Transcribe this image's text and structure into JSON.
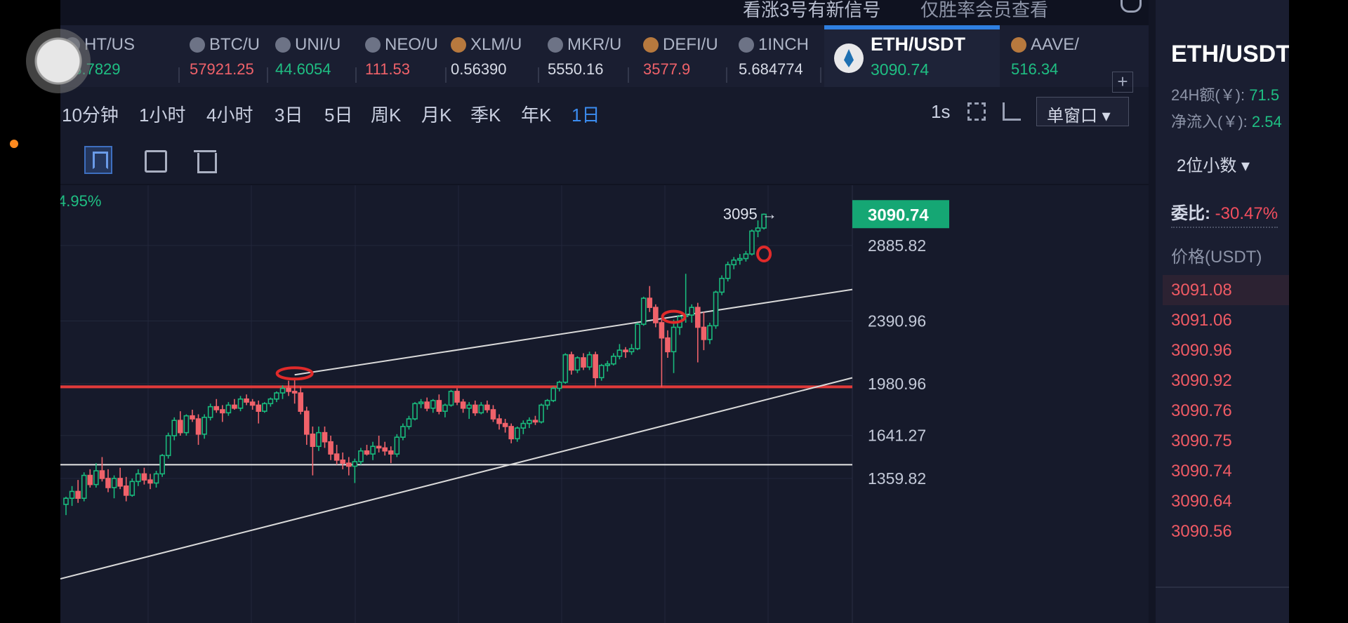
{
  "top_notices": [
    "看涨3号有新信号",
    "仅胜率会员查看"
  ],
  "ticker_tabs": [
    {
      "symbol": "HT/US",
      "price": "28.7829",
      "dir": "up"
    },
    {
      "symbol": "BTC/U",
      "price": "57921.25",
      "dir": "down"
    },
    {
      "symbol": "UNI/U",
      "price": "44.6054",
      "dir": "up"
    },
    {
      "symbol": "NEO/U",
      "price": "111.53",
      "dir": "down"
    },
    {
      "symbol": "XLM/U",
      "price": "0.56390",
      "dir": "flat"
    },
    {
      "symbol": "MKR/U",
      "price": "5550.16",
      "dir": "flat"
    },
    {
      "symbol": "DEFI/U",
      "price": "3577.9",
      "dir": "down"
    },
    {
      "symbol": "1INCH",
      "price": "5.684774",
      "dir": "flat"
    },
    {
      "symbol": "ETH/USDT",
      "price": "3090.74",
      "dir": "up",
      "active": true
    },
    {
      "symbol": "AAVE/",
      "price": "516.34",
      "dir": "up"
    }
  ],
  "add_tab_label": "+",
  "timeframes": [
    {
      "label": "10分钟"
    },
    {
      "label": "1小时"
    },
    {
      "label": "4小时"
    },
    {
      "label": "3日"
    },
    {
      "label": "5日"
    },
    {
      "label": "周K"
    },
    {
      "label": "月K"
    },
    {
      "label": "季K"
    },
    {
      "label": "年K"
    },
    {
      "label": "1日",
      "active": true
    }
  ],
  "interval": "1s",
  "window_select": "单窗口",
  "side_panel": {
    "title": "ETH/USDT",
    "vol_label": "24H额(￥): ",
    "vol_value": "71.5",
    "inflow_label": "净流入(￥): ",
    "inflow_value": "2.54",
    "digits": "2位小数",
    "ratio_label": "委比: ",
    "ratio_value": "-30.47%",
    "price_header": "价格(USDT)",
    "asks": [
      "3091.08",
      "3091.06",
      "3090.96",
      "3090.92",
      "3090.76",
      "3090.75",
      "3090.74",
      "3090.64",
      "3090.56"
    ]
  },
  "chart_data": {
    "type": "candlestick",
    "pct_label": "4.95%",
    "current_price": "3090.74",
    "high_marker": "3095",
    "y_axis_ticks": [
      "2885.82",
      "2390.96",
      "1980.96",
      "1641.27",
      "1359.82"
    ],
    "y_axis_tick_values": [
      2885.82,
      2390.96,
      1980.96,
      1641.27,
      1359.82
    ],
    "support_level": 1960,
    "white_level": 1450,
    "colors": {
      "up": "#19b97c",
      "down": "#f0626a",
      "support": "#e03a3a",
      "trend": "#d9d9d9"
    },
    "candles": [
      {
        "o": 1190,
        "h": 1240,
        "l": 1120,
        "c": 1230
      },
      {
        "o": 1230,
        "h": 1310,
        "l": 1180,
        "c": 1275
      },
      {
        "o": 1275,
        "h": 1350,
        "l": 1200,
        "c": 1230
      },
      {
        "o": 1230,
        "h": 1400,
        "l": 1210,
        "c": 1380
      },
      {
        "o": 1380,
        "h": 1420,
        "l": 1300,
        "c": 1320
      },
      {
        "o": 1320,
        "h": 1460,
        "l": 1300,
        "c": 1410
      },
      {
        "o": 1410,
        "h": 1500,
        "l": 1340,
        "c": 1360
      },
      {
        "o": 1360,
        "h": 1420,
        "l": 1270,
        "c": 1300
      },
      {
        "o": 1300,
        "h": 1380,
        "l": 1230,
        "c": 1360
      },
      {
        "o": 1360,
        "h": 1430,
        "l": 1290,
        "c": 1310
      },
      {
        "o": 1310,
        "h": 1370,
        "l": 1210,
        "c": 1250
      },
      {
        "o": 1250,
        "h": 1360,
        "l": 1240,
        "c": 1340
      },
      {
        "o": 1340,
        "h": 1420,
        "l": 1310,
        "c": 1390
      },
      {
        "o": 1390,
        "h": 1430,
        "l": 1320,
        "c": 1350
      },
      {
        "o": 1350,
        "h": 1390,
        "l": 1290,
        "c": 1330
      },
      {
        "o": 1330,
        "h": 1410,
        "l": 1300,
        "c": 1390
      },
      {
        "o": 1390,
        "h": 1520,
        "l": 1370,
        "c": 1510
      },
      {
        "o": 1510,
        "h": 1660,
        "l": 1490,
        "c": 1640
      },
      {
        "o": 1640,
        "h": 1760,
        "l": 1610,
        "c": 1740
      },
      {
        "o": 1740,
        "h": 1800,
        "l": 1640,
        "c": 1660
      },
      {
        "o": 1660,
        "h": 1780,
        "l": 1640,
        "c": 1770
      },
      {
        "o": 1770,
        "h": 1810,
        "l": 1730,
        "c": 1750
      },
      {
        "o": 1750,
        "h": 1780,
        "l": 1580,
        "c": 1650
      },
      {
        "o": 1650,
        "h": 1780,
        "l": 1620,
        "c": 1760
      },
      {
        "o": 1760,
        "h": 1850,
        "l": 1740,
        "c": 1830
      },
      {
        "o": 1830,
        "h": 1880,
        "l": 1790,
        "c": 1810
      },
      {
        "o": 1810,
        "h": 1840,
        "l": 1730,
        "c": 1790
      },
      {
        "o": 1790,
        "h": 1860,
        "l": 1770,
        "c": 1840
      },
      {
        "o": 1840,
        "h": 1880,
        "l": 1810,
        "c": 1820
      },
      {
        "o": 1820,
        "h": 1900,
        "l": 1800,
        "c": 1880
      },
      {
        "o": 1880,
        "h": 1910,
        "l": 1840,
        "c": 1860
      },
      {
        "o": 1860,
        "h": 1880,
        "l": 1810,
        "c": 1840
      },
      {
        "o": 1840,
        "h": 1870,
        "l": 1720,
        "c": 1800
      },
      {
        "o": 1800,
        "h": 1860,
        "l": 1790,
        "c": 1850
      },
      {
        "o": 1850,
        "h": 1890,
        "l": 1830,
        "c": 1880
      },
      {
        "o": 1880,
        "h": 1930,
        "l": 1860,
        "c": 1920
      },
      {
        "o": 1920,
        "h": 1970,
        "l": 1880,
        "c": 1950
      },
      {
        "o": 1950,
        "h": 2000,
        "l": 1900,
        "c": 1930
      },
      {
        "o": 1930,
        "h": 2020,
        "l": 1850,
        "c": 1920
      },
      {
        "o": 1920,
        "h": 1960,
        "l": 1780,
        "c": 1800
      },
      {
        "o": 1800,
        "h": 1830,
        "l": 1580,
        "c": 1650
      },
      {
        "o": 1650,
        "h": 1700,
        "l": 1380,
        "c": 1570
      },
      {
        "o": 1570,
        "h": 1700,
        "l": 1540,
        "c": 1660
      },
      {
        "o": 1660,
        "h": 1700,
        "l": 1560,
        "c": 1600
      },
      {
        "o": 1600,
        "h": 1640,
        "l": 1480,
        "c": 1520
      },
      {
        "o": 1520,
        "h": 1580,
        "l": 1450,
        "c": 1480
      },
      {
        "o": 1480,
        "h": 1530,
        "l": 1420,
        "c": 1460
      },
      {
        "o": 1460,
        "h": 1500,
        "l": 1380,
        "c": 1440
      },
      {
        "o": 1440,
        "h": 1490,
        "l": 1330,
        "c": 1470
      },
      {
        "o": 1470,
        "h": 1560,
        "l": 1450,
        "c": 1540
      },
      {
        "o": 1540,
        "h": 1580,
        "l": 1510,
        "c": 1520
      },
      {
        "o": 1520,
        "h": 1600,
        "l": 1480,
        "c": 1570
      },
      {
        "o": 1570,
        "h": 1640,
        "l": 1530,
        "c": 1560
      },
      {
        "o": 1560,
        "h": 1600,
        "l": 1510,
        "c": 1540
      },
      {
        "o": 1540,
        "h": 1570,
        "l": 1460,
        "c": 1520
      },
      {
        "o": 1520,
        "h": 1650,
        "l": 1500,
        "c": 1630
      },
      {
        "o": 1630,
        "h": 1720,
        "l": 1610,
        "c": 1700
      },
      {
        "o": 1700,
        "h": 1770,
        "l": 1680,
        "c": 1750
      },
      {
        "o": 1750,
        "h": 1860,
        "l": 1740,
        "c": 1850
      },
      {
        "o": 1850,
        "h": 1880,
        "l": 1820,
        "c": 1860
      },
      {
        "o": 1860,
        "h": 1890,
        "l": 1800,
        "c": 1820
      },
      {
        "o": 1820,
        "h": 1880,
        "l": 1790,
        "c": 1870
      },
      {
        "o": 1870,
        "h": 1910,
        "l": 1780,
        "c": 1800
      },
      {
        "o": 1800,
        "h": 1850,
        "l": 1760,
        "c": 1840
      },
      {
        "o": 1840,
        "h": 1940,
        "l": 1830,
        "c": 1930
      },
      {
        "o": 1930,
        "h": 1950,
        "l": 1840,
        "c": 1860
      },
      {
        "o": 1860,
        "h": 1880,
        "l": 1790,
        "c": 1820
      },
      {
        "o": 1820,
        "h": 1860,
        "l": 1750,
        "c": 1840
      },
      {
        "o": 1840,
        "h": 1870,
        "l": 1770,
        "c": 1790
      },
      {
        "o": 1790,
        "h": 1860,
        "l": 1780,
        "c": 1840
      },
      {
        "o": 1840,
        "h": 1870,
        "l": 1790,
        "c": 1810
      },
      {
        "o": 1810,
        "h": 1840,
        "l": 1730,
        "c": 1750
      },
      {
        "o": 1750,
        "h": 1780,
        "l": 1680,
        "c": 1720
      },
      {
        "o": 1720,
        "h": 1750,
        "l": 1660,
        "c": 1700
      },
      {
        "o": 1700,
        "h": 1720,
        "l": 1590,
        "c": 1620
      },
      {
        "o": 1620,
        "h": 1700,
        "l": 1600,
        "c": 1690
      },
      {
        "o": 1690,
        "h": 1740,
        "l": 1650,
        "c": 1720
      },
      {
        "o": 1720,
        "h": 1760,
        "l": 1690,
        "c": 1740
      },
      {
        "o": 1740,
        "h": 1770,
        "l": 1710,
        "c": 1730
      },
      {
        "o": 1730,
        "h": 1850,
        "l": 1720,
        "c": 1840
      },
      {
        "o": 1840,
        "h": 1880,
        "l": 1810,
        "c": 1870
      },
      {
        "o": 1870,
        "h": 1960,
        "l": 1860,
        "c": 1950
      },
      {
        "o": 1950,
        "h": 2000,
        "l": 1930,
        "c": 1990
      },
      {
        "o": 1990,
        "h": 2180,
        "l": 1980,
        "c": 2170
      },
      {
        "o": 2170,
        "h": 2190,
        "l": 2040,
        "c": 2070
      },
      {
        "o": 2070,
        "h": 2160,
        "l": 2050,
        "c": 2150
      },
      {
        "o": 2150,
        "h": 2180,
        "l": 2070,
        "c": 2090
      },
      {
        "o": 2090,
        "h": 2190,
        "l": 2070,
        "c": 2170
      },
      {
        "o": 2170,
        "h": 2190,
        "l": 1960,
        "c": 2020
      },
      {
        "o": 2020,
        "h": 2110,
        "l": 2000,
        "c": 2100
      },
      {
        "o": 2100,
        "h": 2130,
        "l": 2060,
        "c": 2110
      },
      {
        "o": 2110,
        "h": 2180,
        "l": 2100,
        "c": 2160
      },
      {
        "o": 2160,
        "h": 2240,
        "l": 2140,
        "c": 2200
      },
      {
        "o": 2200,
        "h": 2220,
        "l": 2150,
        "c": 2190
      },
      {
        "o": 2190,
        "h": 2240,
        "l": 2170,
        "c": 2210
      },
      {
        "o": 2210,
        "h": 2380,
        "l": 2200,
        "c": 2370
      },
      {
        "o": 2370,
        "h": 2550,
        "l": 2360,
        "c": 2540
      },
      {
        "o": 2540,
        "h": 2620,
        "l": 2450,
        "c": 2480
      },
      {
        "o": 2480,
        "h": 2500,
        "l": 2350,
        "c": 2380
      },
      {
        "o": 2380,
        "h": 2400,
        "l": 1960,
        "c": 2280
      },
      {
        "o": 2280,
        "h": 2330,
        "l": 2150,
        "c": 2190
      },
      {
        "o": 2190,
        "h": 2400,
        "l": 2050,
        "c": 2350
      },
      {
        "o": 2350,
        "h": 2430,
        "l": 2300,
        "c": 2420
      },
      {
        "o": 2420,
        "h": 2700,
        "l": 2380,
        "c": 2430
      },
      {
        "o": 2430,
        "h": 2500,
        "l": 2380,
        "c": 2480
      },
      {
        "o": 2480,
        "h": 2510,
        "l": 2120,
        "c": 2350
      },
      {
        "o": 2350,
        "h": 2450,
        "l": 2200,
        "c": 2270
      },
      {
        "o": 2270,
        "h": 2380,
        "l": 2240,
        "c": 2360
      },
      {
        "o": 2360,
        "h": 2590,
        "l": 2340,
        "c": 2580
      },
      {
        "o": 2580,
        "h": 2690,
        "l": 2560,
        "c": 2670
      },
      {
        "o": 2670,
        "h": 2780,
        "l": 2650,
        "c": 2760
      },
      {
        "o": 2760,
        "h": 2810,
        "l": 2730,
        "c": 2790
      },
      {
        "o": 2790,
        "h": 2830,
        "l": 2760,
        "c": 2800
      },
      {
        "o": 2800,
        "h": 2850,
        "l": 2780,
        "c": 2830
      },
      {
        "o": 2830,
        "h": 2990,
        "l": 2820,
        "c": 2980
      },
      {
        "o": 2980,
        "h": 3050,
        "l": 2940,
        "c": 3000
      },
      {
        "o": 3000,
        "h": 3095,
        "l": 2990,
        "c": 3090
      }
    ]
  }
}
